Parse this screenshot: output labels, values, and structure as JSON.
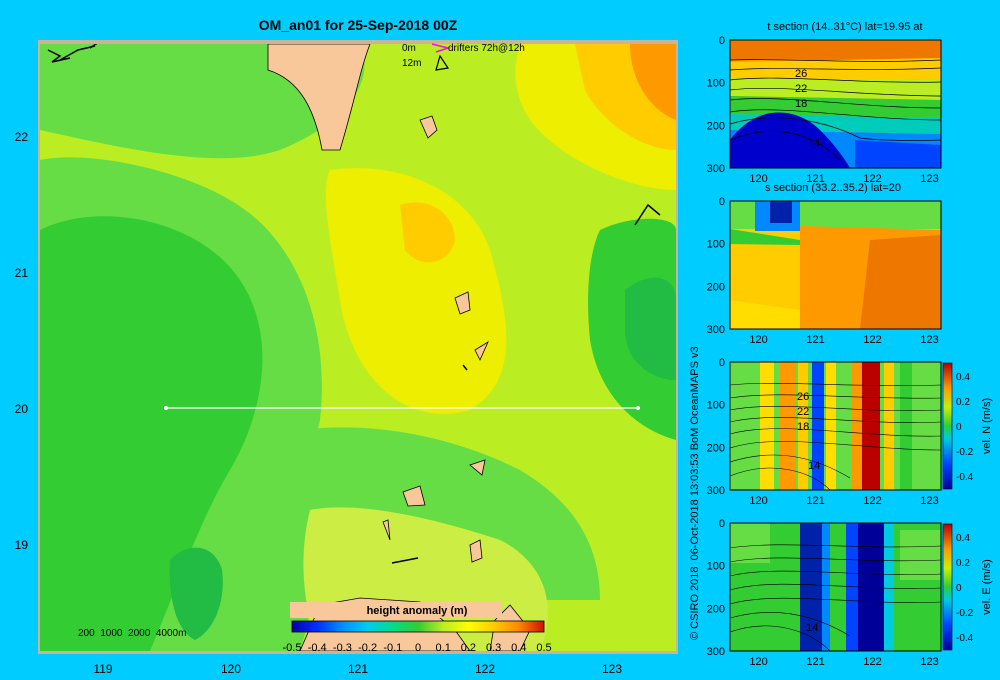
{
  "main_title": "OM_an01 for 25-Sep-2018 00Z",
  "colors": {
    "background": "#00ccff",
    "land": "#f9c89a",
    "land_shadow": "#b9a696",
    "map_border": "#c8b49a"
  },
  "legend": {
    "drifters_label": "drifters 72h@12h",
    "depth_0m": "0m",
    "depth_12m": "12m",
    "depth_scale": "200  1000  2000  4000m"
  },
  "chart_data": [
    {
      "type": "heatmap",
      "name": "height anomaly map",
      "x_ticks": [
        119,
        120,
        121,
        122,
        123
      ],
      "y_ticks": [
        19,
        20,
        21,
        22
      ],
      "xlim": [
        118.5,
        123.5
      ],
      "ylim": [
        18.3,
        22.7
      ],
      "section_line": {
        "lat": 20,
        "lon_start": 119.5,
        "lon_end": 123.2
      },
      "colorbar": {
        "title": "height anomaly (m)",
        "ticks": [
          "-0.5",
          "-0.4",
          "-0.3",
          "-0.2",
          "-0.1",
          "0",
          "0.1",
          "0.2",
          "0.3",
          "0.4",
          "0.5"
        ],
        "range": [
          -0.5,
          0.5
        ]
      }
    },
    {
      "type": "heatmap",
      "title": "t section (14..31°C) lat=19.95 at",
      "x_ticks": [
        "120",
        "121",
        "122",
        "123"
      ],
      "y_ticks": [
        "0",
        "100",
        "200",
        "300"
      ],
      "contour_labels": [
        "26",
        "22",
        "18",
        "14"
      ]
    },
    {
      "type": "heatmap",
      "title": "s section (33.2..35.2) lat=20",
      "x_ticks": [
        "120",
        "121",
        "122",
        "123"
      ],
      "y_ticks": [
        "0",
        "100",
        "200",
        "300"
      ]
    },
    {
      "type": "heatmap",
      "title": "",
      "x_ticks": [
        "120",
        "121",
        "122",
        "123"
      ],
      "y_ticks": [
        "0",
        "100",
        "200",
        "300"
      ],
      "contour_labels": [
        "26",
        "22",
        "18",
        "14"
      ],
      "colorbar": {
        "label": "vel. N (m/s)",
        "ticks": [
          "0.4",
          "0.2",
          "0",
          "-0.2",
          "-0.4"
        ]
      }
    },
    {
      "type": "heatmap",
      "title": "",
      "x_ticks": [
        "120",
        "121",
        "122",
        "123"
      ],
      "y_ticks": [
        "0",
        "100",
        "200",
        "300"
      ],
      "contour_labels": [
        "14"
      ],
      "colorbar": {
        "label": "vel. E (m/s)",
        "ticks": [
          "0.4",
          "0.2",
          "0",
          "-0.2",
          "-0.4"
        ]
      }
    }
  ],
  "side_credit": "© CSIRO 2018  06-Oct-2018 13:03:53 BoM OceanMAPS v3"
}
